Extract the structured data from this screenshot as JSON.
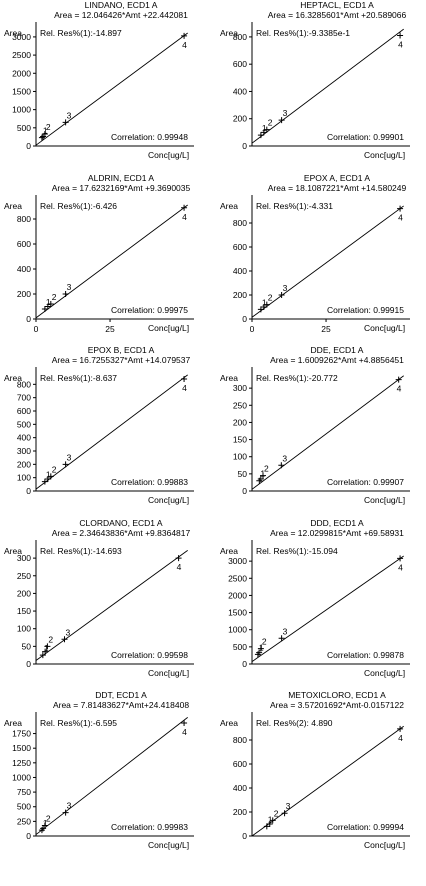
{
  "chart_data": [
    {
      "type": "scatter",
      "title": "LINDANO, ECD1 A",
      "equation": "Area = 12.046426*Amt +22.442081",
      "rel_res": "Rel. Res%(1):-14.897",
      "correlation": "Correlation: 0.99948",
      "ylabel": "Area",
      "xlabel": "Conc[ug/L]",
      "ylim": [
        0,
        3300
      ],
      "xlim": [
        0,
        260
      ],
      "yticks": [
        "0",
        "500",
        "1000",
        "1500",
        "2000",
        "2500",
        "3000"
      ],
      "xticks": [],
      "points": [
        {
          "label": "1",
          "x": 10,
          "y": 230
        },
        {
          "label": "2",
          "x": 15,
          "y": 330
        },
        {
          "label": "",
          "x": 12,
          "y": 260
        },
        {
          "label": "3",
          "x": 50,
          "y": 650
        },
        {
          "label": "4",
          "x": 250,
          "y": 3030
        }
      ],
      "fit": {
        "slope": 12.046426,
        "intercept": 22.442081
      }
    },
    {
      "type": "scatter",
      "title": "HEPTACL, ECD1 A",
      "equation": "Area = 16.3285601*Amt +20.589066",
      "rel_res": "Rel. Res%(1):-9.3385e-1",
      "correlation": "Correlation: 0.99901",
      "ylabel": "Area",
      "xlabel": "Conc[ug/L]",
      "ylim": [
        0,
        880
      ],
      "xlim": [
        0,
        52
      ],
      "yticks": [
        "0",
        "200",
        "400",
        "600",
        "800"
      ],
      "xticks": [],
      "points": [
        {
          "label": "1",
          "x": 3,
          "y": 80
        },
        {
          "label": "2",
          "x": 5,
          "y": 120
        },
        {
          "label": "",
          "x": 4,
          "y": 100
        },
        {
          "label": "3",
          "x": 10,
          "y": 190
        },
        {
          "label": "4",
          "x": 50,
          "y": 810
        }
      ],
      "fit": {
        "slope": 16.3285601,
        "intercept": 20.589066
      }
    },
    {
      "type": "scatter",
      "title": "ALDRIN, ECD1 A",
      "equation": "Area = 17.6232169*Amt +9.3690035",
      "rel_res": "Rel. Res%(1):-6.426",
      "correlation": "Correlation: 0.99975",
      "ylabel": "Area",
      "xlabel": "Conc[ug/L]",
      "ylim": [
        0,
        960
      ],
      "xlim": [
        0,
        52
      ],
      "yticks": [
        "0",
        "200",
        "400",
        "600",
        "800"
      ],
      "xticks": [
        "0",
        "25"
      ],
      "points": [
        {
          "label": "1",
          "x": 3,
          "y": 80
        },
        {
          "label": "2",
          "x": 5,
          "y": 120
        },
        {
          "label": "",
          "x": 4,
          "y": 100
        },
        {
          "label": "3",
          "x": 10,
          "y": 200
        },
        {
          "label": "4",
          "x": 50,
          "y": 890
        }
      ],
      "fit": {
        "slope": 17.6232169,
        "intercept": 9.3690035
      }
    },
    {
      "type": "scatter",
      "title": "EPOX A, ECD1 A",
      "equation": "Area = 18.1087221*Amt +14.580249",
      "rel_res": "Rel. Res%(1):-4.331",
      "correlation": "Correlation: 0.99915",
      "ylabel": "Area",
      "xlabel": "Conc[ug/L]",
      "ylim": [
        0,
        1000
      ],
      "xlim": [
        0,
        52
      ],
      "yticks": [
        "0",
        "200",
        "400",
        "600",
        "800"
      ],
      "xticks": [
        "0",
        "25"
      ],
      "points": [
        {
          "label": "1",
          "x": 3,
          "y": 80
        },
        {
          "label": "2",
          "x": 5,
          "y": 120
        },
        {
          "label": "",
          "x": 4,
          "y": 100
        },
        {
          "label": "3",
          "x": 10,
          "y": 200
        },
        {
          "label": "4",
          "x": 50,
          "y": 920
        }
      ],
      "fit": {
        "slope": 18.1087221,
        "intercept": 14.580249
      }
    },
    {
      "type": "scatter",
      "title": "EPOX B, ECD1 A",
      "equation": "Area = 16.7255327*Amt +14.079537",
      "rel_res": "Rel. Res%(1):-8.637",
      "correlation": "Correlation: 0.99883",
      "ylabel": "Area",
      "xlabel": "Conc[ug/L]",
      "ylim": [
        0,
        900
      ],
      "xlim": [
        0,
        52
      ],
      "yticks": [
        "0",
        "100",
        "200",
        "300",
        "400",
        "500",
        "600",
        "700",
        "800"
      ],
      "xticks": [],
      "points": [
        {
          "label": "1",
          "x": 3,
          "y": 70
        },
        {
          "label": "2",
          "x": 5,
          "y": 110
        },
        {
          "label": "",
          "x": 4,
          "y": 90
        },
        {
          "label": "3",
          "x": 10,
          "y": 200
        },
        {
          "label": "4",
          "x": 50,
          "y": 840
        }
      ],
      "fit": {
        "slope": 16.7255327,
        "intercept": 14.079537
      }
    },
    {
      "type": "scatter",
      "title": "DDE, ECD1 A",
      "equation": "Area = 1.6009262*Amt +4.8856451",
      "rel_res": "Rel. Res%(1):-20.772",
      "correlation": "Correlation: 0.99907",
      "ylabel": "Area",
      "xlabel": "Conc[ug/L]",
      "ylim": [
        0,
        350
      ],
      "xlim": [
        0,
        210
      ],
      "yticks": [
        "0",
        "50",
        "100",
        "150",
        "200",
        "250",
        "300"
      ],
      "xticks": [],
      "points": [
        {
          "label": "1",
          "x": 10,
          "y": 30
        },
        {
          "label": "2",
          "x": 15,
          "y": 45
        },
        {
          "label": "",
          "x": 12,
          "y": 35
        },
        {
          "label": "3",
          "x": 40,
          "y": 75
        },
        {
          "label": "4",
          "x": 200,
          "y": 325
        }
      ],
      "fit": {
        "slope": 1.6009262,
        "intercept": 4.8856451
      }
    },
    {
      "type": "scatter",
      "title": "CLORDANO, ECD1 A",
      "equation": "Area = 2.34643836*Amt +9.8364817",
      "rel_res": "Rel. Res%(1):-14.693",
      "correlation": "Correlation: 0.99598",
      "ylabel": "Area",
      "xlabel": "Conc[ug/L]",
      "ylim": [
        0,
        340
      ],
      "xlim": [
        0,
        135
      ],
      "yticks": [
        "0",
        "50",
        "100",
        "150",
        "200",
        "250",
        "300"
      ],
      "xticks": [],
      "points": [
        {
          "label": "1",
          "x": 6,
          "y": 25
        },
        {
          "label": "2",
          "x": 10,
          "y": 50
        },
        {
          "label": "",
          "x": 8,
          "y": 35
        },
        {
          "label": "3",
          "x": 25,
          "y": 70
        },
        {
          "label": "4",
          "x": 125,
          "y": 300
        }
      ],
      "fit": {
        "slope": 2.34643836,
        "intercept": 9.8364817
      }
    },
    {
      "type": "scatter",
      "title": "DDD, ECD1 A",
      "equation": "Area = 12.0299815*Amt +69.58931",
      "rel_res": "Rel. Res%(1):-15.094",
      "correlation": "Correlation: 0.99878",
      "ylabel": "Area",
      "xlabel": "Conc[ug/L]",
      "ylim": [
        0,
        3500
      ],
      "xlim": [
        0,
        260
      ],
      "yticks": [
        "0",
        "500",
        "1000",
        "1500",
        "2000",
        "2500",
        "3000"
      ],
      "xticks": [],
      "points": [
        {
          "label": "1",
          "x": 10,
          "y": 280
        },
        {
          "label": "2",
          "x": 15,
          "y": 450
        },
        {
          "label": "",
          "x": 12,
          "y": 330
        },
        {
          "label": "3",
          "x": 50,
          "y": 750
        },
        {
          "label": "4",
          "x": 250,
          "y": 3080
        }
      ],
      "fit": {
        "slope": 12.0299815,
        "intercept": 69.58931
      }
    },
    {
      "type": "scatter",
      "title": "DDT, ECD1 A",
      "equation": "Area = 7.81483627*Amt+24.418408",
      "rel_res": "Rel. Res%(1):-6.595",
      "correlation": "Correlation: 0.99983",
      "ylabel": "Area",
      "xlabel": "Conc[ug/L]",
      "ylim": [
        0,
        2050
      ],
      "xlim": [
        0,
        260
      ],
      "yticks": [
        "0",
        "250",
        "500",
        "750",
        "1000",
        "1250",
        "1500",
        "1750"
      ],
      "xticks": [],
      "points": [
        {
          "label": "1",
          "x": 10,
          "y": 100
        },
        {
          "label": "2",
          "x": 15,
          "y": 180
        },
        {
          "label": "",
          "x": 12,
          "y": 130
        },
        {
          "label": "3",
          "x": 50,
          "y": 400
        },
        {
          "label": "4",
          "x": 250,
          "y": 1930
        }
      ],
      "fit": {
        "slope": 7.81483627,
        "intercept": 24.418408
      }
    },
    {
      "type": "scatter",
      "title": "METOXICLORO, ECD1 A",
      "equation": "Area = 3.57201692*Amt-0.0157122",
      "rel_res": "Rel. Res%(2): 4.890",
      "correlation": "Correlation: 0.99994",
      "ylabel": "Area",
      "xlabel": "Conc[ug/L]",
      "ylim": [
        0,
        1000
      ],
      "xlim": [
        0,
        260
      ],
      "yticks": [
        "0",
        "200",
        "400",
        "600",
        "800"
      ],
      "xticks": [],
      "points": [
        {
          "label": "1",
          "x": 25,
          "y": 80
        },
        {
          "label": "2",
          "x": 35,
          "y": 130
        },
        {
          "label": "",
          "x": 30,
          "y": 100
        },
        {
          "label": "3",
          "x": 55,
          "y": 190
        },
        {
          "label": "4",
          "x": 250,
          "y": 893
        }
      ],
      "fit": {
        "slope": 3.57201692,
        "intercept": -0.0157122
      }
    }
  ]
}
